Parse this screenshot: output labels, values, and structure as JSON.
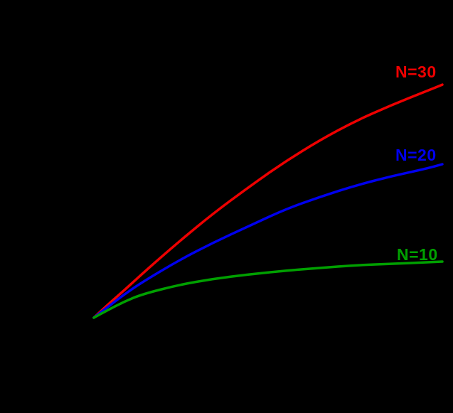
{
  "chart_data": {
    "type": "line",
    "title": "",
    "xlabel": "",
    "ylabel": "",
    "background_color": "#000000",
    "legend_position": "end-of-line-labels",
    "grid": false,
    "axes_visible": false,
    "x_range_normalized": [
      0,
      1
    ],
    "y_range_normalized": [
      0,
      1
    ],
    "series": [
      {
        "label": "N=30",
        "color": "#ee0000",
        "points": [
          [
            0,
            0.015
          ],
          [
            0.037,
            0.065
          ],
          [
            0.088,
            0.129
          ],
          [
            0.139,
            0.197
          ],
          [
            0.241,
            0.326
          ],
          [
            0.343,
            0.447
          ],
          [
            0.445,
            0.556
          ],
          [
            0.547,
            0.659
          ],
          [
            0.649,
            0.75
          ],
          [
            0.751,
            0.829
          ],
          [
            0.853,
            0.894
          ],
          [
            0.955,
            0.953
          ],
          [
            1,
            0.979
          ]
        ]
      },
      {
        "label": "N=20",
        "color": "#0000ee",
        "points": [
          [
            0,
            0.015
          ],
          [
            0.037,
            0.056
          ],
          [
            0.088,
            0.112
          ],
          [
            0.139,
            0.162
          ],
          [
            0.241,
            0.25
          ],
          [
            0.343,
            0.326
          ],
          [
            0.445,
            0.394
          ],
          [
            0.547,
            0.462
          ],
          [
            0.649,
            0.515
          ],
          [
            0.751,
            0.562
          ],
          [
            0.853,
            0.6
          ],
          [
            0.955,
            0.632
          ],
          [
            1,
            0.65
          ]
        ]
      },
      {
        "label": "N=10",
        "color": "#00a000",
        "points": [
          [
            0,
            0.015
          ],
          [
            0.037,
            0.044
          ],
          [
            0.088,
            0.082
          ],
          [
            0.139,
            0.112
          ],
          [
            0.241,
            0.15
          ],
          [
            0.343,
            0.176
          ],
          [
            0.445,
            0.194
          ],
          [
            0.547,
            0.209
          ],
          [
            0.649,
            0.221
          ],
          [
            0.751,
            0.232
          ],
          [
            0.853,
            0.238
          ],
          [
            0.955,
            0.244
          ],
          [
            1,
            0.247
          ]
        ]
      }
    ],
    "line_width": 3.5
  }
}
